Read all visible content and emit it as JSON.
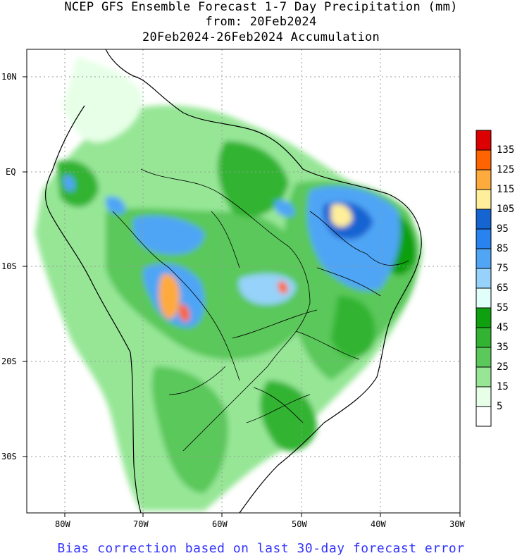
{
  "title": {
    "line1": "NCEP GFS Ensemble Forecast 1-7 Day Precipitation (mm)",
    "line2": "from: 20Feb2024",
    "line3": "20Feb2024-26Feb2024 Accumulation"
  },
  "axes": {
    "lat_labels": [
      "10N",
      "EQ",
      "10S",
      "20S",
      "30S"
    ],
    "lon_labels": [
      "80W",
      "70W",
      "60W",
      "50W",
      "40W",
      "30W"
    ]
  },
  "legend": {
    "labels": [
      "135",
      "125",
      "115",
      "105",
      "95",
      "85",
      "75",
      "65",
      "55",
      "45",
      "35",
      "25",
      "15",
      "5"
    ],
    "colors": [
      "#dc0000",
      "#ff6400",
      "#ffaa3c",
      "#ffee9a",
      "#1464d2",
      "#2882f0",
      "#50a5f5",
      "#96d2fa",
      "#e1fffa",
      "#0fa00f",
      "#32b432",
      "#5ac85a",
      "#96e696",
      "#e6ffe6",
      "#ffffff"
    ]
  },
  "footer": "Bias correction based on last 30-day forecast error"
}
